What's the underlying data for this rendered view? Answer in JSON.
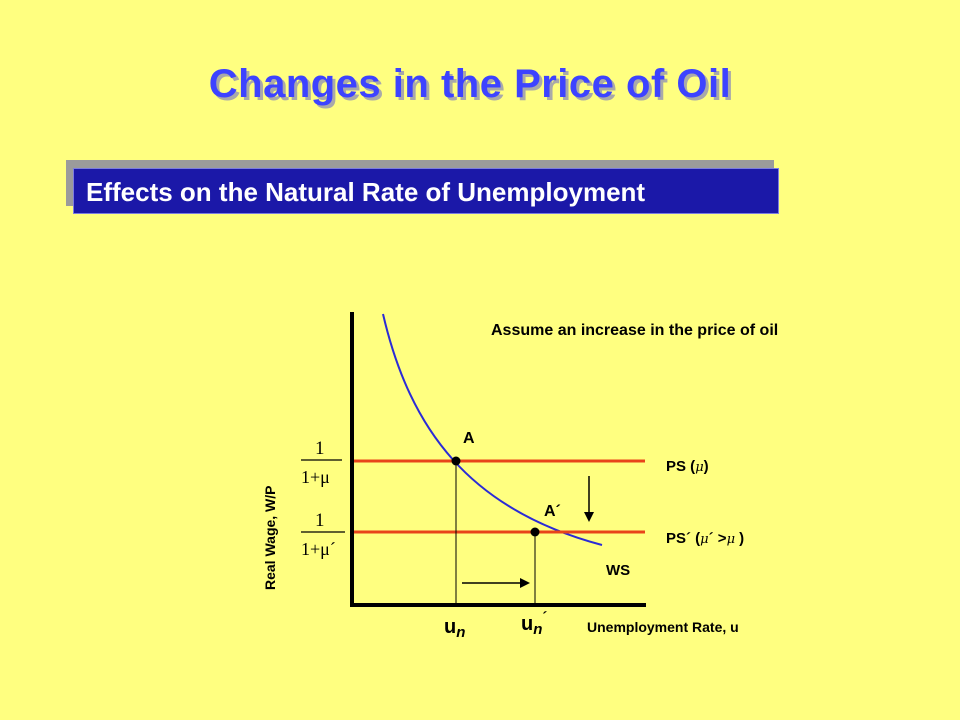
{
  "title": "Changes in the Price of Oil",
  "subtitle": "Effects on the Natural Rate of Unemployment",
  "note": "Assume an increase in the price of oil",
  "axes": {
    "y_label": "Real Wage, W/P",
    "x_label": "Unemployment Rate, u"
  },
  "points": {
    "a": "A",
    "a_prime": "A´"
  },
  "curves": {
    "ps": {
      "prefix": "PS (",
      "symbol": "μ",
      "suffix": ")"
    },
    "ps_prime": {
      "prefix": "PS´ (",
      "symbol": "μ",
      "mid": "´ >",
      "symbol2": "μ",
      "suffix": " )"
    },
    "ws": "WS"
  },
  "fractions": {
    "numerator": "1",
    "denominator_1": "1+μ",
    "denominator_2": "1+μ´"
  },
  "ticks": {
    "un_main": "u",
    "un_sub": "n",
    "un_prime_main": "u",
    "un_prime_sub": "n",
    "un_prime_mark": "´"
  },
  "colors": {
    "title": "#3d43ff",
    "subtitle_bg": "#1b18a8",
    "background": "#ffff80",
    "ws_curve": "#2b2bd6",
    "ps_line": "#e8441a"
  }
}
